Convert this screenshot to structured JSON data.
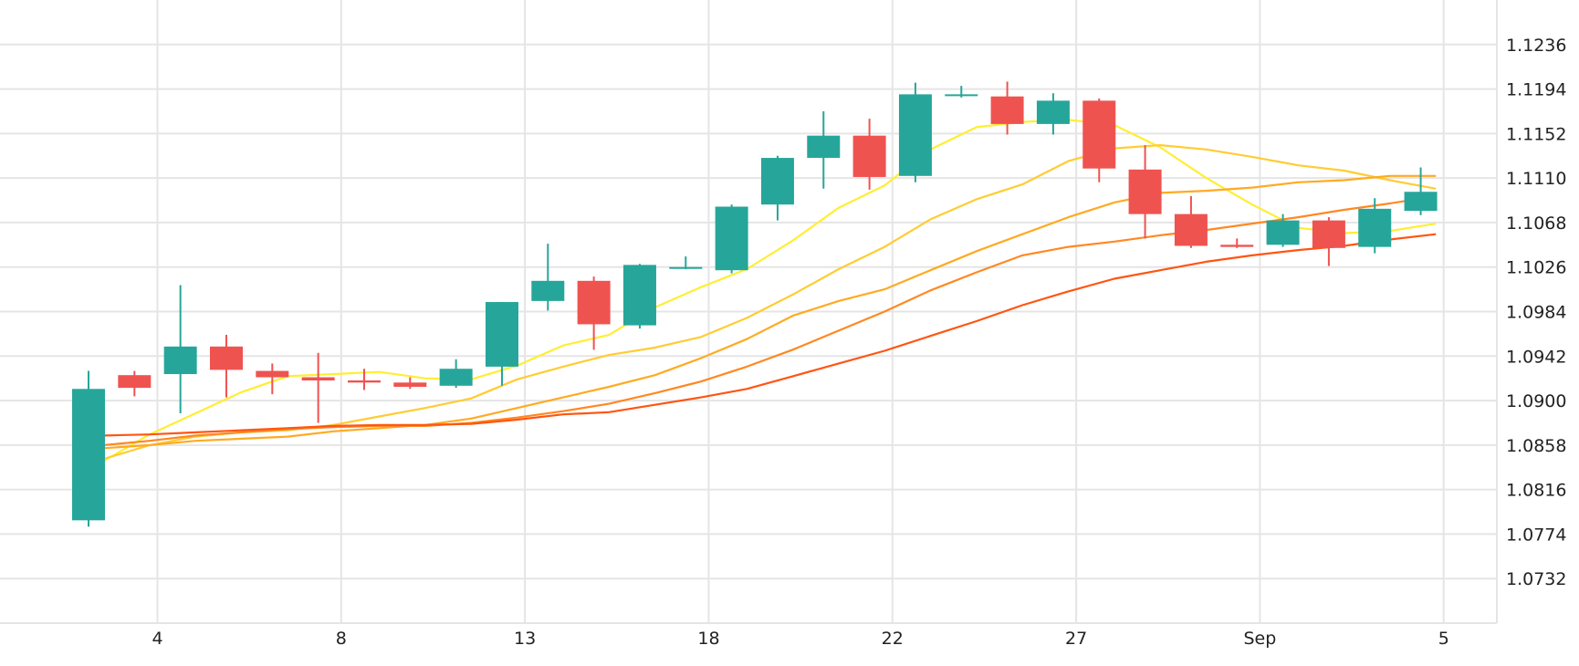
{
  "chart_data": {
    "type": "candlestick",
    "title": "",
    "xlabel": "",
    "ylabel": "",
    "grid": true,
    "ylim": [
      1.069,
      1.1278
    ],
    "y_ticks": [
      "1.1236",
      "1.1194",
      "1.1152",
      "1.1110",
      "1.1068",
      "1.1026",
      "1.0984",
      "1.0942",
      "1.0900",
      "1.0858",
      "1.0816",
      "1.0774",
      "1.0732"
    ],
    "x_ticks": [
      {
        "index": 1.5,
        "label": "4"
      },
      {
        "index": 5.5,
        "label": "8"
      },
      {
        "index": 9.5,
        "label": "13"
      },
      {
        "index": 13.5,
        "label": "18"
      },
      {
        "index": 17.5,
        "label": "22"
      },
      {
        "index": 21.5,
        "label": "27"
      },
      {
        "index": 25.5,
        "label": "Sep"
      },
      {
        "index": 29.5,
        "label": "5"
      }
    ],
    "candles": [
      {
        "o": 1.0787,
        "h": 1.0928,
        "l": 1.0781,
        "c": 1.0911
      },
      {
        "o": 1.0924,
        "h": 1.0928,
        "l": 1.0904,
        "c": 1.0912
      },
      {
        "o": 1.0925,
        "h": 1.1009,
        "l": 1.0888,
        "c": 1.0951
      },
      {
        "o": 1.0951,
        "h": 1.0962,
        "l": 1.0903,
        "c": 1.0929
      },
      {
        "o": 1.0928,
        "h": 1.0935,
        "l": 1.0906,
        "c": 1.0922
      },
      {
        "o": 1.0922,
        "h": 1.0945,
        "l": 1.0879,
        "c": 1.0919
      },
      {
        "o": 1.0919,
        "h": 1.093,
        "l": 1.091,
        "c": 1.0917
      },
      {
        "o": 1.0917,
        "h": 1.0922,
        "l": 1.0911,
        "c": 1.0913
      },
      {
        "o": 1.0914,
        "h": 1.0939,
        "l": 1.0912,
        "c": 1.093
      },
      {
        "o": 1.0932,
        "h": 1.0993,
        "l": 1.0914,
        "c": 1.0993
      },
      {
        "o": 1.0994,
        "h": 1.1048,
        "l": 1.0985,
        "c": 1.1013
      },
      {
        "o": 1.1013,
        "h": 1.1017,
        "l": 1.0948,
        "c": 1.0972
      },
      {
        "o": 1.0971,
        "h": 1.1029,
        "l": 1.0968,
        "c": 1.1028
      },
      {
        "o": 1.1026,
        "h": 1.1036,
        "l": 1.1024,
        "c": 1.1026
      },
      {
        "o": 1.1023,
        "h": 1.1085,
        "l": 1.102,
        "c": 1.1083
      },
      {
        "o": 1.1085,
        "h": 1.1131,
        "l": 1.107,
        "c": 1.1129
      },
      {
        "o": 1.1129,
        "h": 1.1173,
        "l": 1.11,
        "c": 1.115
      },
      {
        "o": 1.115,
        "h": 1.1166,
        "l": 1.1099,
        "c": 1.1111
      },
      {
        "o": 1.1112,
        "h": 1.12,
        "l": 1.1106,
        "c": 1.1189
      },
      {
        "o": 1.1188,
        "h": 1.1197,
        "l": 1.1186,
        "c": 1.1189
      },
      {
        "o": 1.1187,
        "h": 1.1201,
        "l": 1.1151,
        "c": 1.1161
      },
      {
        "o": 1.1161,
        "h": 1.119,
        "l": 1.1151,
        "c": 1.1183
      },
      {
        "o": 1.1183,
        "h": 1.1185,
        "l": 1.1106,
        "c": 1.1119
      },
      {
        "o": 1.1118,
        "h": 1.1141,
        "l": 1.1053,
        "c": 1.1076
      },
      {
        "o": 1.1076,
        "h": 1.1093,
        "l": 1.1044,
        "c": 1.1046
      },
      {
        "o": 1.1047,
        "h": 1.1053,
        "l": 1.1044,
        "c": 1.1045
      },
      {
        "o": 1.1047,
        "h": 1.1076,
        "l": 1.1045,
        "c": 1.107
      },
      {
        "o": 1.107,
        "h": 1.1073,
        "l": 1.1027,
        "c": 1.1044
      },
      {
        "o": 1.1045,
        "h": 1.1091,
        "l": 1.1039,
        "c": 1.1081
      },
      {
        "o": 1.1079,
        "h": 1.112,
        "l": 1.1075,
        "c": 1.1097
      }
    ],
    "series": [
      {
        "color": "#ffee33",
        "values": [
          1.0843,
          1.0868,
          1.0888,
          1.0908,
          1.0923,
          1.0925,
          1.0927,
          1.0921,
          1.092,
          1.0933,
          1.0952,
          1.0962,
          1.0988,
          1.1007,
          1.1024,
          1.1051,
          1.1082,
          1.1103,
          1.1137,
          1.1158,
          1.1163,
          1.1165,
          1.116,
          1.1139,
          1.111,
          1.1085,
          1.1063,
          1.1058,
          1.106,
          1.1067
        ]
      },
      {
        "color": "#ffcc33",
        "values": [
          1.0845,
          1.0858,
          1.0866,
          1.087,
          1.0872,
          1.0877,
          1.0885,
          1.0893,
          1.0902,
          1.092,
          1.0932,
          1.0943,
          1.095,
          1.096,
          1.0978,
          1.1,
          1.1024,
          1.1045,
          1.1071,
          1.109,
          1.1104,
          1.1126,
          1.1138,
          1.1141,
          1.1137,
          1.113,
          1.1122,
          1.1117,
          1.1108,
          1.11
        ]
      },
      {
        "color": "#ffaa22",
        "values": [
          1.0855,
          1.0858,
          1.0862,
          1.0864,
          1.0866,
          1.0871,
          1.0874,
          1.0877,
          1.0883,
          1.0893,
          1.0903,
          1.0913,
          1.0924,
          1.094,
          1.0958,
          1.098,
          1.0994,
          1.1005,
          1.1023,
          1.1041,
          1.1057,
          1.1073,
          1.1087,
          1.1096,
          1.1098,
          1.1101,
          1.1106,
          1.1108,
          1.1112,
          1.1112
        ]
      },
      {
        "color": "#ff8822",
        "values": [
          1.0858,
          1.0862,
          1.0867,
          1.087,
          1.0873,
          1.0875,
          1.0876,
          1.0876,
          1.0879,
          1.0884,
          1.089,
          1.0897,
          1.0907,
          1.0918,
          1.0932,
          1.0948,
          1.0966,
          1.0984,
          1.1004,
          1.1021,
          1.1037,
          1.1045,
          1.105,
          1.1056,
          1.1061,
          1.1067,
          1.1073,
          1.108,
          1.1086,
          1.1093
        ]
      },
      {
        "color": "#ff5511",
        "values": [
          1.0867,
          1.0868,
          1.087,
          1.0872,
          1.0874,
          1.0876,
          1.0877,
          1.0877,
          1.0878,
          1.0882,
          1.0887,
          1.0889,
          1.0896,
          1.0903,
          1.0911,
          1.0923,
          1.0935,
          1.0947,
          1.0961,
          1.0975,
          1.099,
          1.1003,
          1.1015,
          1.1023,
          1.1031,
          1.1037,
          1.1042,
          1.1046,
          1.1052,
          1.1057
        ]
      }
    ],
    "colors": {
      "up": "#26a69a",
      "down": "#ef5350",
      "grid": "#e5e5e5",
      "text": "#222222"
    }
  }
}
